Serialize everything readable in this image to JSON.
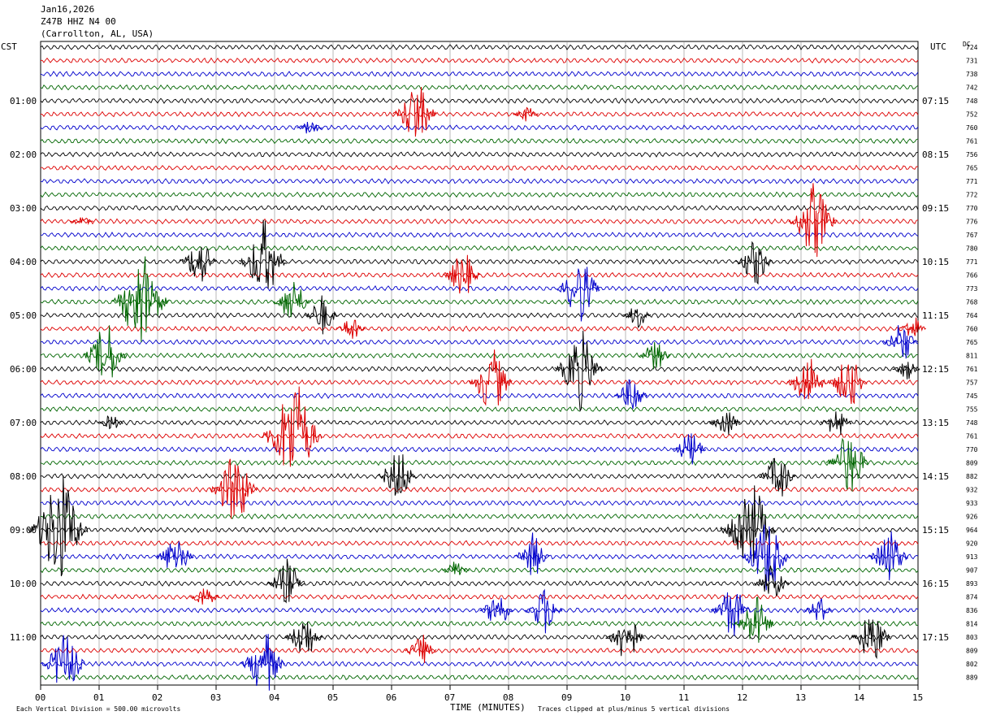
{
  "header": {
    "date": "Jan16,2026",
    "station": "Z47B HHZ N4 00",
    "location": "(Carrollton, AL, USA)"
  },
  "labels": {
    "left_timezone": "CST",
    "right_timezone": "UTC",
    "dc_header": "DC",
    "xlabel": "TIME (MINUTES)",
    "footer_left": "Each Vertical Division =  500.00 microvolts",
    "footer_right": "Traces clipped at plus/minus 5 vertical divisions"
  },
  "colors": {
    "trace_cycle": [
      "#000000",
      "#dd0000",
      "#0000cc",
      "#006600"
    ],
    "grid": "#888888"
  },
  "chart_data": {
    "type": "line",
    "title": "Jan16,2026 Z47B HHZ N4 00 (Carrollton, AL, USA)",
    "xlabel": "TIME (MINUTES)",
    "xlim": [
      0,
      15
    ],
    "x_ticks": [
      "00",
      "01",
      "02",
      "03",
      "04",
      "05",
      "06",
      "07",
      "08",
      "09",
      "10",
      "11",
      "12",
      "13",
      "14",
      "15"
    ],
    "trace_minutes": 15,
    "left_hour_labels": [
      "01:00",
      "02:00",
      "03:00",
      "04:00",
      "05:00",
      "06:00",
      "07:00",
      "08:00",
      "09:00",
      "10:00",
      "11:00"
    ],
    "right_hour_labels": [
      "07:15",
      "08:15",
      "09:15",
      "10:15",
      "11:15",
      "12:15",
      "13:15",
      "14:15",
      "15:15",
      "16:15",
      "17:15"
    ],
    "dc_offsets": [
      724,
      731,
      738,
      742,
      748,
      752,
      760,
      761,
      756,
      765,
      771,
      772,
      770,
      776,
      767,
      780,
      771,
      766,
      773,
      768,
      764,
      760,
      765,
      811,
      761,
      757,
      745,
      755,
      748,
      761,
      770,
      809,
      882,
      932,
      933,
      926,
      964,
      920,
      913,
      907,
      893,
      874,
      836,
      814,
      803,
      809,
      802,
      889
    ],
    "bursts": [
      {
        "row": 5,
        "minute": 6.4,
        "amp": 3
      },
      {
        "row": 5,
        "minute": 8.3,
        "amp": 0.8
      },
      {
        "row": 6,
        "minute": 4.6,
        "amp": 0.8
      },
      {
        "row": 13,
        "minute": 0.7,
        "amp": 0.5
      },
      {
        "row": 13,
        "minute": 13.2,
        "amp": 3.5
      },
      {
        "row": 16,
        "minute": 2.7,
        "amp": 2.2
      },
      {
        "row": 16,
        "minute": 3.8,
        "amp": 3.5
      },
      {
        "row": 16,
        "minute": 12.2,
        "amp": 2.2
      },
      {
        "row": 17,
        "minute": 7.2,
        "amp": 2.2
      },
      {
        "row": 18,
        "minute": 9.2,
        "amp": 3
      },
      {
        "row": 19,
        "minute": 1.7,
        "amp": 4.5
      },
      {
        "row": 19,
        "minute": 4.3,
        "amp": 2.2
      },
      {
        "row": 20,
        "minute": 4.8,
        "amp": 1.8
      },
      {
        "row": 20,
        "minute": 10.2,
        "amp": 1.2
      },
      {
        "row": 21,
        "minute": 5.3,
        "amp": 1.2
      },
      {
        "row": 21,
        "minute": 14.9,
        "amp": 1.2
      },
      {
        "row": 22,
        "minute": 14.7,
        "amp": 2
      },
      {
        "row": 23,
        "minute": 1.1,
        "amp": 3
      },
      {
        "row": 23,
        "minute": 10.5,
        "amp": 1.5
      },
      {
        "row": 24,
        "minute": 9.2,
        "amp": 3.5
      },
      {
        "row": 24,
        "minute": 14.8,
        "amp": 1
      },
      {
        "row": 25,
        "minute": 7.7,
        "amp": 3
      },
      {
        "row": 25,
        "minute": 13.1,
        "amp": 2.5
      },
      {
        "row": 25,
        "minute": 13.8,
        "amp": 2.5
      },
      {
        "row": 26,
        "minute": 10.1,
        "amp": 1.8
      },
      {
        "row": 28,
        "minute": 1.2,
        "amp": 0.8
      },
      {
        "row": 28,
        "minute": 11.7,
        "amp": 1.5
      },
      {
        "row": 28,
        "minute": 13.6,
        "amp": 1.5
      },
      {
        "row": 29,
        "minute": 4.3,
        "amp": 5
      },
      {
        "row": 30,
        "minute": 11.1,
        "amp": 1.8
      },
      {
        "row": 31,
        "minute": 13.8,
        "amp": 3
      },
      {
        "row": 32,
        "minute": 6.1,
        "amp": 2.5
      },
      {
        "row": 32,
        "minute": 12.6,
        "amp": 2.2
      },
      {
        "row": 33,
        "minute": 3.3,
        "amp": 3.5
      },
      {
        "row": 36,
        "minute": 0.3,
        "amp": 5
      },
      {
        "row": 36,
        "minute": 12.1,
        "amp": 4.5
      },
      {
        "row": 38,
        "minute": 2.3,
        "amp": 2.2
      },
      {
        "row": 38,
        "minute": 8.4,
        "amp": 2
      },
      {
        "row": 38,
        "minute": 12.4,
        "amp": 3.5
      },
      {
        "row": 38,
        "minute": 14.5,
        "amp": 2.5
      },
      {
        "row": 39,
        "minute": 7.1,
        "amp": 1
      },
      {
        "row": 40,
        "minute": 4.2,
        "amp": 2.2
      },
      {
        "row": 40,
        "minute": 12.5,
        "amp": 2
      },
      {
        "row": 41,
        "minute": 2.8,
        "amp": 1.2
      },
      {
        "row": 42,
        "minute": 7.8,
        "amp": 1.8
      },
      {
        "row": 42,
        "minute": 8.6,
        "amp": 2.2
      },
      {
        "row": 42,
        "minute": 11.8,
        "amp": 2.5
      },
      {
        "row": 42,
        "minute": 13.3,
        "amp": 1.2
      },
      {
        "row": 43,
        "minute": 12.2,
        "amp": 2.5
      },
      {
        "row": 44,
        "minute": 4.5,
        "amp": 2.2
      },
      {
        "row": 44,
        "minute": 10.0,
        "amp": 2.5
      },
      {
        "row": 44,
        "minute": 14.2,
        "amp": 2.5
      },
      {
        "row": 45,
        "minute": 6.5,
        "amp": 1.5
      },
      {
        "row": 46,
        "minute": 0.4,
        "amp": 3
      },
      {
        "row": 46,
        "minute": 3.8,
        "amp": 3
      }
    ]
  }
}
